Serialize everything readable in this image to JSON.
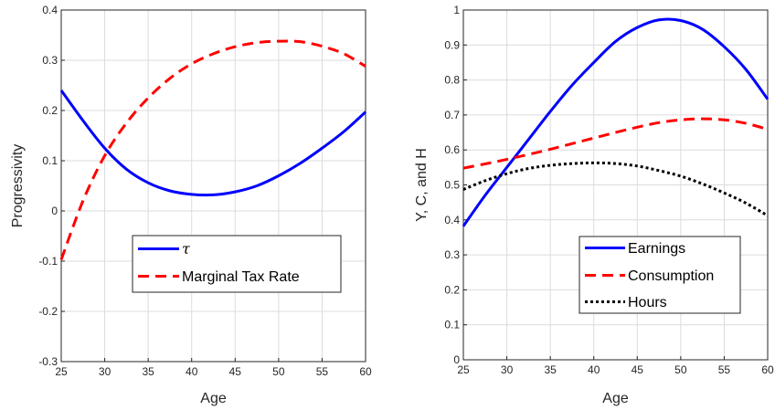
{
  "chart_data": [
    {
      "type": "line",
      "title": "",
      "xlabel": "Age",
      "ylabel": "Progressivity",
      "xlim": [
        25,
        60
      ],
      "ylim": [
        -0.3,
        0.4
      ],
      "grid": true,
      "legend_position": "bottom-right",
      "x_ticks": [
        "25",
        "30",
        "35",
        "40",
        "45",
        "50",
        "55",
        "60"
      ],
      "y_ticks": [
        "-0.3",
        "-0.2",
        "-0.1",
        "0",
        "0.1",
        "0.2",
        "0.3",
        "0.4"
      ],
      "x": [
        25,
        27.5,
        30,
        32.5,
        35,
        37.5,
        40,
        42.5,
        45,
        47.5,
        50,
        52.5,
        55,
        57.5,
        60
      ],
      "series": [
        {
          "name": "τ",
          "color": "#0000ff",
          "style": "solid",
          "values": [
            0.24,
            0.18,
            0.125,
            0.083,
            0.056,
            0.04,
            0.033,
            0.032,
            0.038,
            0.05,
            0.07,
            0.095,
            0.125,
            0.158,
            0.197
          ]
        },
        {
          "name": "Marginal Tax Rate",
          "color": "#ff0000",
          "style": "dashed",
          "values": [
            -0.097,
            0.02,
            0.11,
            0.175,
            0.225,
            0.264,
            0.293,
            0.313,
            0.327,
            0.335,
            0.338,
            0.337,
            0.328,
            0.313,
            0.288
          ]
        }
      ]
    },
    {
      "type": "line",
      "title": "",
      "xlabel": "Age",
      "ylabel": "Y, C, and H",
      "xlim": [
        25,
        60
      ],
      "ylim": [
        0,
        1
      ],
      "grid": true,
      "legend_position": "bottom-right",
      "x_ticks": [
        "25",
        "30",
        "35",
        "40",
        "45",
        "50",
        "55",
        "60"
      ],
      "y_ticks": [
        "0",
        "0.1",
        "0.2",
        "0.3",
        "0.4",
        "0.5",
        "0.6",
        "0.7",
        "0.8",
        "0.9",
        "1"
      ],
      "x": [
        25,
        27.5,
        30,
        32.5,
        35,
        37.5,
        40,
        42.5,
        45,
        47.5,
        50,
        52.5,
        55,
        57.5,
        60
      ],
      "series": [
        {
          "name": "Earnings",
          "color": "#0000ff",
          "style": "solid",
          "values": [
            0.382,
            0.47,
            0.55,
            0.63,
            0.71,
            0.785,
            0.85,
            0.91,
            0.95,
            0.972,
            0.97,
            0.945,
            0.895,
            0.83,
            0.745
          ]
        },
        {
          "name": "Consumption",
          "color": "#ff0000",
          "style": "dashed",
          "values": [
            0.548,
            0.56,
            0.573,
            0.587,
            0.602,
            0.618,
            0.634,
            0.65,
            0.665,
            0.678,
            0.686,
            0.689,
            0.686,
            0.676,
            0.659
          ]
        },
        {
          "name": "Hours",
          "color": "#000000",
          "style": "dotted",
          "values": [
            0.487,
            0.512,
            0.532,
            0.547,
            0.556,
            0.561,
            0.563,
            0.561,
            0.554,
            0.541,
            0.525,
            0.503,
            0.477,
            0.448,
            0.412
          ]
        }
      ]
    }
  ]
}
